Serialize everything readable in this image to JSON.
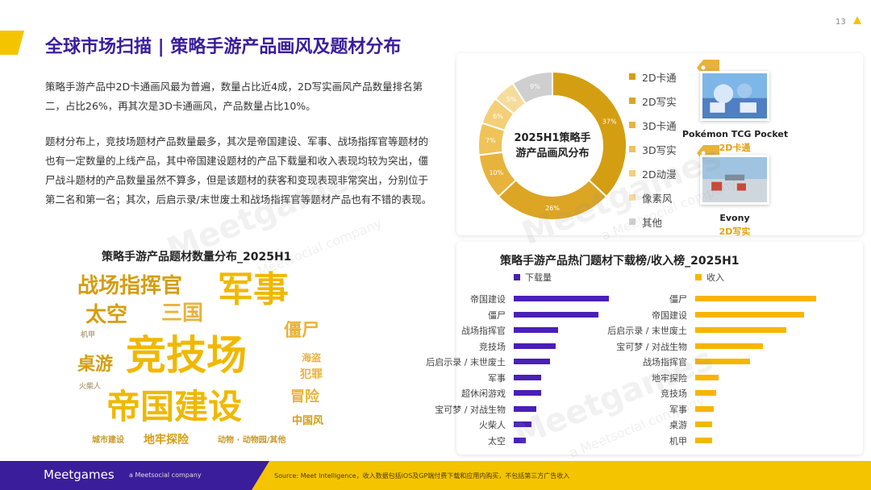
{
  "page_number": "13",
  "title": "全球市场扫描 | 策略手游产品画风及题材分布",
  "paragraphs": [
    "策略手游产品中2D卡通画风最为普遍，数量占比近4成，2D写实画风产品数量排名第二，占比26%，再其次是3D卡通画风，产品数量占比10%。",
    "题材分布上，竞技场题材产品数量最多，其次是帝国建设、军事、战场指挥官等题材的也有一定数量的上线产品，其中帝国建设题材的产品下载量和收入表现均较为突出，僵尸战斗题材的产品数量虽然不算多，但是该题材的获客和变现表现非常突出，分别位于第二名和第一名；其次，后启示录/末世废土和战场指挥官等题材产品也有不错的表现。"
  ],
  "colors": {
    "purple": "#3a1d9a",
    "yellow": "#f5c400",
    "bar_download": "#4a1fb8",
    "bar_revenue": "#f7b500",
    "accent_orange": "#e5a10c"
  },
  "chart_data": [
    {
      "type": "pie",
      "center_label": "2025H1策略手游产品画风分布",
      "categories": [
        "2D卡通",
        "2D写实",
        "3D卡通",
        "3D写实",
        "2D动漫",
        "像素风",
        "其他"
      ],
      "values": [
        37,
        26,
        10,
        7,
        6,
        5,
        9
      ],
      "value_labels": [
        "37%",
        "26%",
        "10%",
        "7%",
        "6%",
        "5%",
        "9%"
      ],
      "colors": [
        "#d49e12",
        "#dca524",
        "#e8b33c",
        "#efc358",
        "#f3cf78",
        "#f6dc9c",
        "#cfcfcf"
      ],
      "legend_position": "right"
    },
    {
      "type": "bar",
      "title": "策略手游产品热门题材下载榜/收入榜_2025H1",
      "series": [
        {
          "name": "下载量",
          "categories": [
            "帝国建设",
            "僵尸",
            "战场指挥官",
            "竞技场",
            "后启示录 / 末世废土",
            "军事",
            "超休闲游戏",
            "宝可梦 / 对战生物",
            "火柴人",
            "太空"
          ],
          "values": [
            100,
            89,
            47,
            44,
            38,
            29,
            29,
            24,
            19,
            13
          ]
        },
        {
          "name": "收入",
          "categories": [
            "僵尸",
            "帝国建设",
            "后启示录 / 末世废土",
            "宝可梦 / 对战生物",
            "战场指挥官",
            "地牢探险",
            "竞技场",
            "军事",
            "桌游",
            "机甲"
          ],
          "values": [
            100,
            90,
            75,
            56,
            45,
            19,
            17,
            15,
            14,
            14
          ]
        }
      ]
    }
  ],
  "donut_legend": [
    "2D卡通",
    "2D写实",
    "3D卡通",
    "3D写实",
    "2D动漫",
    "像素风",
    "其他"
  ],
  "games": [
    {
      "name": "Pokémon TCG Pocket",
      "style": "2D卡通"
    },
    {
      "name": "Evony",
      "style": "2D写实"
    }
  ],
  "wordcloud": {
    "title": "策略手游产品题材数量分布_2025H1",
    "words": [
      "战场指挥官",
      "军事",
      "太空",
      "三国",
      "僵尸",
      "桌游",
      "竞技场",
      "海盗",
      "犯罪",
      "帝国建设",
      "冒险",
      "中国风",
      "城市建设",
      "地牢探险",
      "动物 · 动物园/其他",
      "机甲",
      "火柴人"
    ]
  },
  "rank_legend": {
    "download": "下载量",
    "revenue": "收入"
  },
  "footer": {
    "logo": "Meetgames",
    "sub": "a Meetsocial company",
    "source": "Source: Meet Intelligence，收入数据包括iOS及GP端付费下载和应用内购买，不包括第三方广告收入"
  }
}
